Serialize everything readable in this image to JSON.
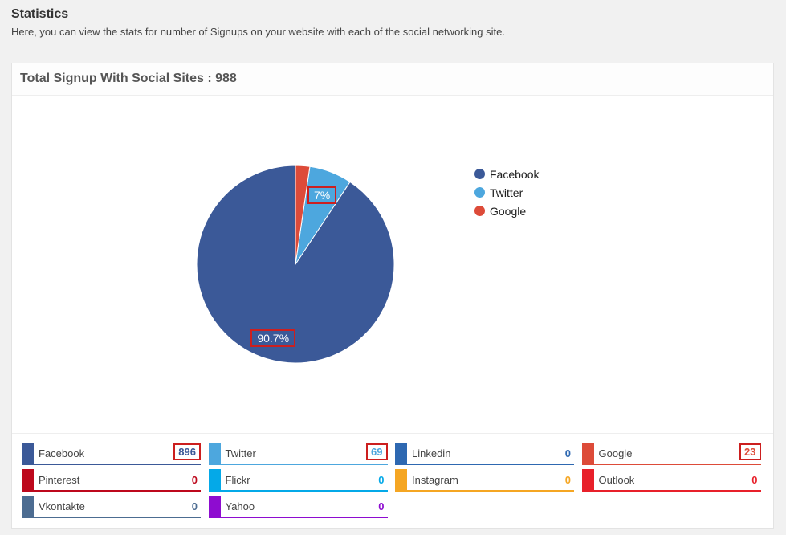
{
  "header": {
    "title": "Statistics",
    "description": "Here, you can view the stats for number of Signups on your website with each of the social networking site."
  },
  "panel": {
    "title": "Total Signup With Social Sites : 988"
  },
  "chart_data": {
    "type": "pie",
    "slices": [
      {
        "name": "Facebook",
        "value": 896,
        "label": "90.7%",
        "color": "#3b5998"
      },
      {
        "name": "Twitter",
        "value": 69,
        "label": "7%",
        "color": "#4da7de"
      },
      {
        "name": "Google",
        "value": 23,
        "label": "",
        "color": "#dd4b39"
      }
    ],
    "legend": [
      "Facebook",
      "Twitter",
      "Google"
    ],
    "legend_position": "right"
  },
  "stats": [
    {
      "name": "Facebook",
      "value": "896",
      "color": "#3b5998",
      "text_color": "#3b5998",
      "boxed": true
    },
    {
      "name": "Twitter",
      "value": "69",
      "color": "#4da7de",
      "text_color": "#4da7de",
      "boxed": true
    },
    {
      "name": "Linkedin",
      "value": "0",
      "color": "#2e68b1",
      "text_color": "#2e68b1",
      "boxed": false
    },
    {
      "name": "Google",
      "value": "23",
      "color": "#dd4b39",
      "text_color": "#dd4b39",
      "boxed": true
    },
    {
      "name": "Pinterest",
      "value": "0",
      "color": "#bd081c",
      "text_color": "#bd081c",
      "boxed": false
    },
    {
      "name": "Flickr",
      "value": "0",
      "color": "#04a9e8",
      "text_color": "#04a9e8",
      "boxed": false
    },
    {
      "name": "Instagram",
      "value": "0",
      "color": "#f5a623",
      "text_color": "#f5a623",
      "boxed": false
    },
    {
      "name": "Outlook",
      "value": "0",
      "color": "#e8202a",
      "text_color": "#e8202a",
      "boxed": false
    },
    {
      "name": "Vkontakte",
      "value": "0",
      "color": "#4c6c91",
      "text_color": "#4c6c91",
      "boxed": false
    },
    {
      "name": "Yahoo",
      "value": "0",
      "color": "#8e0cd0",
      "text_color": "#8e0cd0",
      "boxed": false
    }
  ]
}
